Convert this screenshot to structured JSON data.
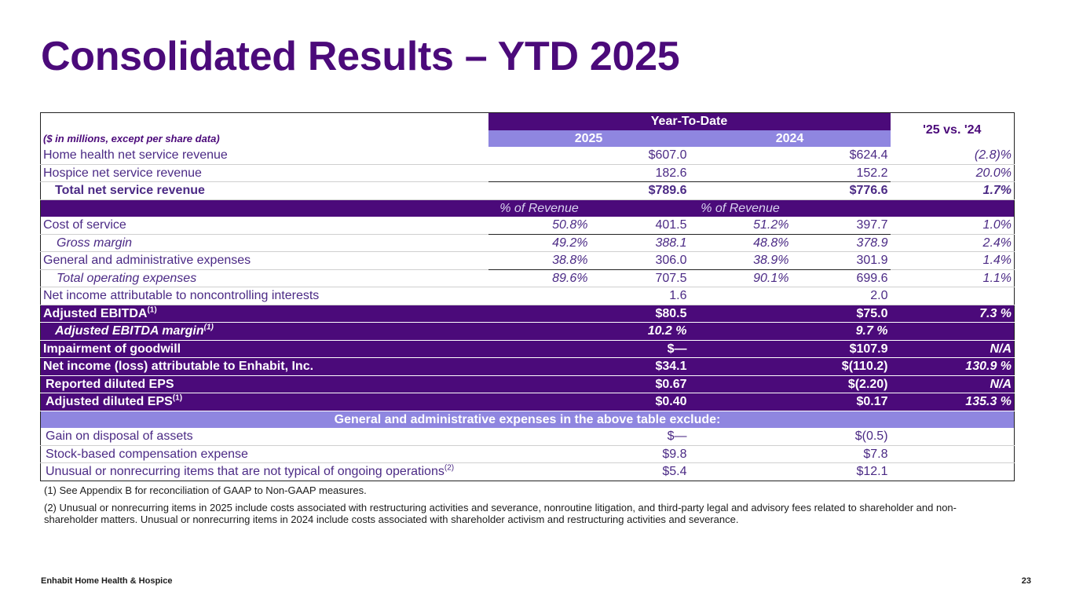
{
  "title": "Consolidated Results – YTD 2025",
  "table": {
    "label": "($ in millions, except per share data)",
    "group_header": "Year-To-Date",
    "col_2025": "2025",
    "col_2024": "2024",
    "col_vs": "'25 vs. '24",
    "pct_of_revenue": "% of Revenue",
    "rows": {
      "home_health": {
        "label": "Home health net service revenue",
        "v25": "$607.0",
        "v24": "$624.4",
        "vs": "(2.8)%"
      },
      "hospice": {
        "label": "Hospice net service revenue",
        "v25": "182.6",
        "v24": "152.2",
        "vs": "20.0%"
      },
      "total_rev": {
        "label": "Total net service revenue",
        "v25": "$789.6",
        "v24": "$776.6",
        "vs": "1.7%"
      },
      "cost": {
        "label": "Cost of service",
        "p25": "50.8%",
        "v25": "401.5",
        "p24": "51.2%",
        "v24": "397.7",
        "vs": "1.0%"
      },
      "gross": {
        "label": "Gross margin",
        "p25": "49.2%",
        "v25": "388.1",
        "p24": "48.8%",
        "v24": "378.9",
        "vs": "2.4%"
      },
      "ga": {
        "label": "General and administrative expenses",
        "p25": "38.8%",
        "v25": "306.0",
        "p24": "38.9%",
        "v24": "301.9",
        "vs": "1.4%"
      },
      "total_opex": {
        "label": "Total operating expenses",
        "p25": "89.6%",
        "v25": "707.5",
        "p24": "90.1%",
        "v24": "699.6",
        "vs": "1.1%"
      },
      "nci": {
        "label": "Net income attributable to noncontrolling interests",
        "v25": "1.6",
        "v24": "2.0"
      },
      "ebitda": {
        "label": "Adjusted EBITDA",
        "sup": "(1)",
        "v25": "$80.5",
        "v24": "$75.0",
        "vs": "7.3 %"
      },
      "ebitda_margin": {
        "label": "Adjusted EBITDA margin",
        "sup": "(1)",
        "v25": "10.2 %",
        "v24": "9.7 %"
      },
      "goodwill": {
        "label": "Impairment of goodwill",
        "v25": "$—",
        "v24": "$107.9",
        "vs": "N/A"
      },
      "net_income": {
        "label": "Net income (loss) attributable to Enhabit, Inc.",
        "v25": "$34.1",
        "v24": "$(110.2)",
        "vs": "130.9 %"
      },
      "rep_eps": {
        "label": "Reported diluted EPS",
        "v25": "$0.67",
        "v24": "$(2.20)",
        "vs": "N/A"
      },
      "adj_eps": {
        "label": "Adjusted diluted EPS",
        "sup": "(1)",
        "v25": "$0.40",
        "v24": "$0.17",
        "vs": "135.3 %"
      }
    },
    "exclude_header": "General and administrative expenses in the above table exclude:",
    "exclude_rows": {
      "gain": {
        "label": "Gain on disposal of assets",
        "v25": "$—",
        "v24": "$(0.5)"
      },
      "stock": {
        "label": "Stock-based compensation expense",
        "v25": "$9.8",
        "v24": "$7.8"
      },
      "unusual": {
        "label": "Unusual or nonrecurring items that are not typical of ongoing operations",
        "sup": "(2)",
        "v25": "$5.4",
        "v24": "$12.1"
      }
    }
  },
  "footnotes": {
    "fn1": "(1) See Appendix B for reconciliation of GAAP to Non-GAAP measures.",
    "fn2": "(2) Unusual or nonrecurring items in 2025 include costs associated with restructuring activities and severance, nonroutine litigation, and third-party legal and advisory fees related to shareholder and non-shareholder matters. Unusual or nonrecurring items in 2024 include costs associated with shareholder activism and restructuring activities and severance."
  },
  "footer": {
    "company": "Enhabit Home Health & Hospice",
    "page": "23"
  },
  "colors": {
    "purple_dark": "#4b0a7a",
    "lavender": "#8f86e0"
  }
}
